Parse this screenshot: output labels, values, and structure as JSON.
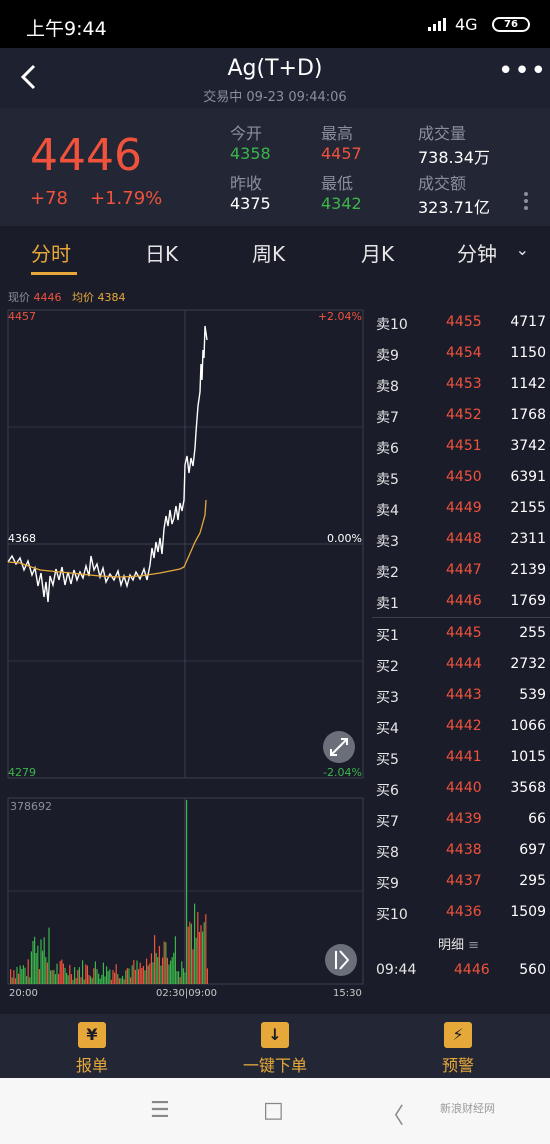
{
  "status_bar": {
    "time": "上午9:44",
    "network": "4G",
    "battery": "76"
  },
  "header": {
    "title": "Ag(T+D)",
    "subtitle": "交易中 09-23 09:44:06"
  },
  "quote": {
    "price": "4446",
    "change": "+78",
    "change_pct": "+1.79%",
    "open_label": "今开",
    "open": "4358",
    "high_label": "最高",
    "high": "4457",
    "volume_label": "成交量",
    "volume": "738.34万",
    "prev_close_label": "昨收",
    "prev_close": "4375",
    "low_label": "最低",
    "low": "4342",
    "amount_label": "成交额",
    "amount": "323.71亿"
  },
  "tabs": [
    {
      "label": "分时"
    },
    {
      "label": "日K"
    },
    {
      "label": "周K"
    },
    {
      "label": "月K"
    },
    {
      "label": "分钟"
    }
  ],
  "legend": {
    "now_label": "现价",
    "now": "4446",
    "avg_label": "均价",
    "avg": "4384"
  },
  "price_chart": {
    "y_max": "4457",
    "y_mid": "4368",
    "y_min": "4279",
    "pct_max": "+2.04%",
    "pct_mid": "0.00%",
    "pct_min": "-2.04%"
  },
  "volume_chart": {
    "max": "378692"
  },
  "time_axis": {
    "start": "20:00",
    "middle": "02:30|09:00",
    "end": "15:30"
  },
  "order_book": {
    "asks": [
      {
        "label": "卖10",
        "price": "4455",
        "vol": "4717"
      },
      {
        "label": "卖9",
        "price": "4454",
        "vol": "1150"
      },
      {
        "label": "卖8",
        "price": "4453",
        "vol": "1142"
      },
      {
        "label": "卖7",
        "price": "4452",
        "vol": "1768"
      },
      {
        "label": "卖6",
        "price": "4451",
        "vol": "3742"
      },
      {
        "label": "卖5",
        "price": "4450",
        "vol": "6391"
      },
      {
        "label": "卖4",
        "price": "4449",
        "vol": "2155"
      },
      {
        "label": "卖3",
        "price": "4448",
        "vol": "2311"
      },
      {
        "label": "卖2",
        "price": "4447",
        "vol": "2139"
      },
      {
        "label": "卖1",
        "price": "4446",
        "vol": "1769"
      }
    ],
    "bids": [
      {
        "label": "买1",
        "price": "4445",
        "vol": "255"
      },
      {
        "label": "买2",
        "price": "4444",
        "vol": "2732"
      },
      {
        "label": "买3",
        "price": "4443",
        "vol": "539"
      },
      {
        "label": "买4",
        "price": "4442",
        "vol": "1066"
      },
      {
        "label": "买5",
        "price": "4441",
        "vol": "1015"
      },
      {
        "label": "买6",
        "price": "4440",
        "vol": "3568"
      },
      {
        "label": "买7",
        "price": "4439",
        "vol": "66"
      },
      {
        "label": "买8",
        "price": "4438",
        "vol": "697"
      },
      {
        "label": "买9",
        "price": "4437",
        "vol": "295"
      },
      {
        "label": "买10",
        "price": "4436",
        "vol": "1509"
      }
    ],
    "detail_label": "明细",
    "last_trade": {
      "time": "09:44",
      "price": "4446",
      "vol": "560"
    }
  },
  "bottom_bar": [
    {
      "label": "报单",
      "icon": "¥"
    },
    {
      "label": "一键下单",
      "icon": "↓"
    },
    {
      "label": "预警",
      "icon": "⚡"
    }
  ],
  "watermark": "新浪财经网",
  "colors": {
    "up": "#f0523c",
    "down": "#3bb54a",
    "accent": "#e7a83a",
    "avg_line": "#e7a83a"
  }
}
